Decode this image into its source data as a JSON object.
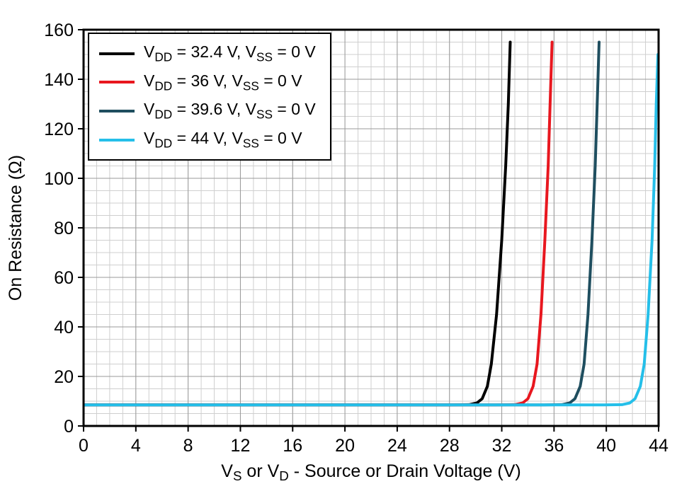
{
  "chart_data": {
    "type": "line",
    "title": "",
    "xlabel": "V_S or V_D - Source or Drain Voltage (V)",
    "ylabel": "On Resistance (Ω)",
    "xlim": [
      0,
      44
    ],
    "ylim": [
      0,
      160
    ],
    "xticks": [
      0,
      4,
      8,
      12,
      16,
      20,
      24,
      28,
      32,
      36,
      40,
      44
    ],
    "yticks": [
      0,
      20,
      40,
      60,
      80,
      100,
      120,
      140,
      160
    ],
    "x_minor_step": 1,
    "y_minor_step": 5,
    "grid": true,
    "legend_position": "top-left",
    "flat_on_resistance_ohm": 8.5,
    "series": [
      {
        "name": "V_DD = 32.4 V, V_SS = 0 V",
        "color": "#000000",
        "points": [
          [
            0,
            8.5
          ],
          [
            28,
            8.5
          ],
          [
            29.5,
            8.6
          ],
          [
            30.1,
            9.3
          ],
          [
            30.5,
            11
          ],
          [
            30.9,
            16
          ],
          [
            31.2,
            25
          ],
          [
            31.6,
            45
          ],
          [
            32.0,
            75
          ],
          [
            32.3,
            105
          ],
          [
            32.5,
            130
          ],
          [
            32.65,
            155
          ]
        ]
      },
      {
        "name": "V_DD = 36 V, V_SS = 0 V",
        "color": "#e8171f",
        "points": [
          [
            0,
            8.5
          ],
          [
            31.5,
            8.5
          ],
          [
            33.0,
            8.6
          ],
          [
            33.6,
            9.3
          ],
          [
            34.0,
            11
          ],
          [
            34.4,
            16
          ],
          [
            34.7,
            25
          ],
          [
            35.0,
            45
          ],
          [
            35.3,
            75
          ],
          [
            35.55,
            105
          ],
          [
            35.7,
            130
          ],
          [
            35.85,
            155
          ]
        ]
      },
      {
        "name": "V_DD = 39.6 V, V_SS = 0 V",
        "color": "#1f4e5f",
        "points": [
          [
            0,
            8.5
          ],
          [
            35.2,
            8.5
          ],
          [
            36.6,
            8.6
          ],
          [
            37.2,
            9.3
          ],
          [
            37.6,
            11
          ],
          [
            38.0,
            16
          ],
          [
            38.3,
            25
          ],
          [
            38.6,
            45
          ],
          [
            38.9,
            75
          ],
          [
            39.15,
            105
          ],
          [
            39.3,
            130
          ],
          [
            39.45,
            155
          ]
        ]
      },
      {
        "name": "V_DD = 44 V, V_SS = 0 V",
        "color": "#25bfe9",
        "points": [
          [
            0,
            8.5
          ],
          [
            39.8,
            8.5
          ],
          [
            41.2,
            8.6
          ],
          [
            41.8,
            9.3
          ],
          [
            42.2,
            11
          ],
          [
            42.6,
            16
          ],
          [
            42.9,
            25
          ],
          [
            43.2,
            45
          ],
          [
            43.5,
            75
          ],
          [
            43.7,
            105
          ],
          [
            43.82,
            130
          ],
          [
            43.95,
            150
          ]
        ]
      }
    ]
  }
}
